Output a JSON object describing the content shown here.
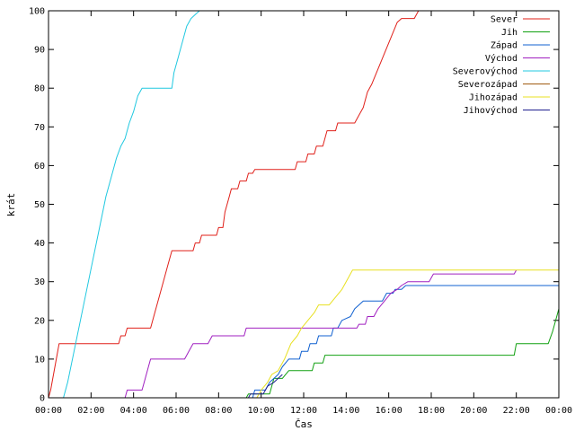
{
  "chart_data": {
    "type": "line",
    "xlabel": "Čas",
    "ylabel": "krát",
    "xlim": [
      0,
      24
    ],
    "ylim": [
      0,
      100
    ],
    "x_ticks": [
      {
        "value": 0,
        "label": "00:00"
      },
      {
        "value": 2,
        "label": "02:00"
      },
      {
        "value": 4,
        "label": "04:00"
      },
      {
        "value": 6,
        "label": "06:00"
      },
      {
        "value": 8,
        "label": "08:00"
      },
      {
        "value": 10,
        "label": "10:00"
      },
      {
        "value": 12,
        "label": "12:00"
      },
      {
        "value": 14,
        "label": "14:00"
      },
      {
        "value": 16,
        "label": "16:00"
      },
      {
        "value": 18,
        "label": "18:00"
      },
      {
        "value": 20,
        "label": "20:00"
      },
      {
        "value": 22,
        "label": "22:00"
      },
      {
        "value": 24,
        "label": "00:00"
      }
    ],
    "y_ticks": [
      0,
      10,
      20,
      30,
      40,
      50,
      60,
      70,
      80,
      90,
      100
    ],
    "grid": false,
    "legend_position": "top-right",
    "series": [
      {
        "name": "Sever",
        "color": "#e0201a",
        "points": [
          [
            0,
            0
          ],
          [
            0.1,
            2
          ],
          [
            0.3,
            8
          ],
          [
            0.5,
            14
          ],
          [
            3.3,
            14
          ],
          [
            3.4,
            16
          ],
          [
            3.6,
            16
          ],
          [
            3.7,
            18
          ],
          [
            4.8,
            18
          ],
          [
            5.0,
            22
          ],
          [
            5.2,
            26
          ],
          [
            5.4,
            30
          ],
          [
            5.6,
            34
          ],
          [
            5.8,
            38
          ],
          [
            6.8,
            38
          ],
          [
            6.9,
            40
          ],
          [
            7.1,
            40
          ],
          [
            7.2,
            42
          ],
          [
            7.9,
            42
          ],
          [
            8.0,
            44
          ],
          [
            8.2,
            44
          ],
          [
            8.3,
            48
          ],
          [
            8.5,
            52
          ],
          [
            8.6,
            54
          ],
          [
            8.9,
            54
          ],
          [
            9.0,
            56
          ],
          [
            9.3,
            56
          ],
          [
            9.4,
            58
          ],
          [
            9.6,
            58
          ],
          [
            9.7,
            59
          ],
          [
            11.6,
            59
          ],
          [
            11.7,
            61
          ],
          [
            12.1,
            61
          ],
          [
            12.2,
            63
          ],
          [
            12.5,
            63
          ],
          [
            12.6,
            65
          ],
          [
            12.9,
            65
          ],
          [
            13.1,
            69
          ],
          [
            13.5,
            69
          ],
          [
            13.6,
            71
          ],
          [
            14.4,
            71
          ],
          [
            14.6,
            73
          ],
          [
            14.8,
            75
          ],
          [
            15.0,
            79
          ],
          [
            15.2,
            81
          ],
          [
            15.5,
            85
          ],
          [
            15.8,
            89
          ],
          [
            16.1,
            93
          ],
          [
            16.4,
            97
          ],
          [
            16.6,
            98
          ],
          [
            17.2,
            98
          ],
          [
            17.4,
            100
          ]
        ]
      },
      {
        "name": "Jih",
        "color": "#10a010",
        "points": [
          [
            9.3,
            0
          ],
          [
            9.4,
            1
          ],
          [
            10.4,
            1
          ],
          [
            10.6,
            5
          ],
          [
            11.0,
            5
          ],
          [
            11.3,
            7
          ],
          [
            12.4,
            7
          ],
          [
            12.5,
            9
          ],
          [
            12.9,
            9
          ],
          [
            13.0,
            11
          ],
          [
            21.9,
            11
          ],
          [
            22.0,
            14
          ],
          [
            23.5,
            14
          ],
          [
            23.7,
            17
          ],
          [
            23.85,
            20
          ],
          [
            24,
            23
          ]
        ]
      },
      {
        "name": "Západ",
        "color": "#1060d0",
        "points": [
          [
            9.6,
            0
          ],
          [
            9.7,
            2
          ],
          [
            10.2,
            2
          ],
          [
            10.4,
            4
          ],
          [
            10.8,
            6
          ],
          [
            11.0,
            8
          ],
          [
            11.3,
            10
          ],
          [
            11.8,
            10
          ],
          [
            11.9,
            12
          ],
          [
            12.2,
            12
          ],
          [
            12.3,
            14
          ],
          [
            12.6,
            14
          ],
          [
            12.7,
            16
          ],
          [
            13.3,
            16
          ],
          [
            13.4,
            18
          ],
          [
            13.6,
            18
          ],
          [
            13.8,
            20
          ],
          [
            14.2,
            21
          ],
          [
            14.4,
            23
          ],
          [
            14.6,
            24
          ],
          [
            14.8,
            25
          ],
          [
            15.7,
            25
          ],
          [
            15.9,
            27
          ],
          [
            16.2,
            27
          ],
          [
            16.3,
            28
          ],
          [
            16.6,
            28
          ],
          [
            16.8,
            29
          ],
          [
            24,
            29
          ]
        ]
      },
      {
        "name": "Východ",
        "color": "#a020c0",
        "points": [
          [
            3.6,
            0
          ],
          [
            3.7,
            2
          ],
          [
            4.4,
            2
          ],
          [
            4.5,
            4
          ],
          [
            4.7,
            8
          ],
          [
            4.8,
            10
          ],
          [
            6.4,
            10
          ],
          [
            6.6,
            12
          ],
          [
            6.8,
            14
          ],
          [
            7.5,
            14
          ],
          [
            7.7,
            16
          ],
          [
            9.2,
            16
          ],
          [
            9.3,
            18
          ],
          [
            14.5,
            18
          ],
          [
            14.6,
            19
          ],
          [
            14.9,
            19
          ],
          [
            15.0,
            21
          ],
          [
            15.3,
            21
          ],
          [
            15.5,
            23
          ],
          [
            15.8,
            25
          ],
          [
            16.1,
            27
          ],
          [
            16.4,
            28
          ],
          [
            16.6,
            29
          ],
          [
            16.9,
            30
          ],
          [
            17.9,
            30
          ],
          [
            18.1,
            32
          ],
          [
            21.9,
            32
          ],
          [
            22.0,
            33
          ]
        ]
      },
      {
        "name": "Severovýchod",
        "color": "#20c8e0",
        "points": [
          [
            0.7,
            0
          ],
          [
            0.9,
            4
          ],
          [
            1.2,
            12
          ],
          [
            1.5,
            20
          ],
          [
            1.8,
            28
          ],
          [
            2.1,
            36
          ],
          [
            2.4,
            44
          ],
          [
            2.7,
            52
          ],
          [
            3.0,
            58
          ],
          [
            3.2,
            62
          ],
          [
            3.4,
            65
          ],
          [
            3.6,
            67
          ],
          [
            3.8,
            71
          ],
          [
            4.0,
            74
          ],
          [
            4.2,
            78
          ],
          [
            4.4,
            80
          ],
          [
            5.8,
            80
          ],
          [
            5.9,
            84
          ],
          [
            6.1,
            88
          ],
          [
            6.3,
            92
          ],
          [
            6.5,
            96
          ],
          [
            6.7,
            98
          ],
          [
            6.9,
            99
          ],
          [
            7.1,
            100
          ]
        ]
      },
      {
        "name": "Severozápad",
        "color": "#a05a10",
        "points": []
      },
      {
        "name": "Jihozápad",
        "color": "#e8e020",
        "points": [
          [
            9.8,
            0
          ],
          [
            10.0,
            2
          ],
          [
            10.3,
            4
          ],
          [
            10.5,
            6
          ],
          [
            10.8,
            7
          ],
          [
            11.1,
            10
          ],
          [
            11.4,
            14
          ],
          [
            11.7,
            16
          ],
          [
            11.9,
            18
          ],
          [
            12.2,
            20
          ],
          [
            12.5,
            22
          ],
          [
            12.7,
            24
          ],
          [
            13.2,
            24
          ],
          [
            13.5,
            26
          ],
          [
            13.8,
            28
          ],
          [
            14.1,
            31
          ],
          [
            14.3,
            33
          ],
          [
            24,
            33
          ]
        ]
      },
      {
        "name": "Jihovýchod",
        "color": "#202090",
        "points": [
          [
            9.4,
            0
          ],
          [
            9.5,
            1
          ],
          [
            10.1,
            1
          ],
          [
            10.3,
            3
          ],
          [
            10.6,
            4
          ],
          [
            10.8,
            5
          ],
          [
            11.0,
            6
          ]
        ]
      }
    ]
  }
}
